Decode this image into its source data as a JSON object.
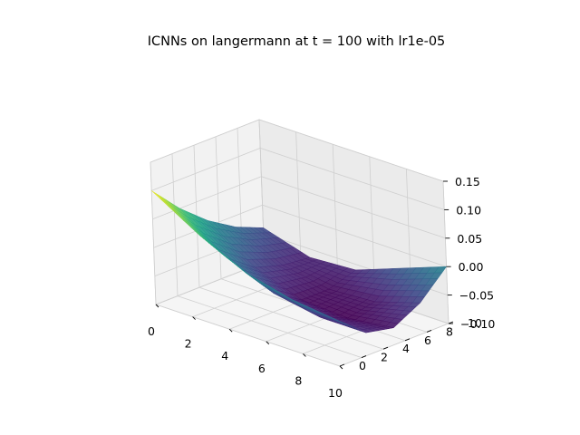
{
  "chart_data": {
    "type": "surface3d",
    "title": "ICNNs on langermann at t = 100 with lr1e-05",
    "xlabel": "",
    "ylabel": "",
    "zlabel": "",
    "xlim": [
      0,
      10
    ],
    "ylim": [
      0,
      10
    ],
    "zlim": [
      -0.1,
      0.15
    ],
    "x_ticks": [
      0,
      2,
      4,
      6,
      8,
      10
    ],
    "y_ticks": [
      0,
      2,
      4,
      6,
      8,
      10
    ],
    "z_ticks": [
      -0.1,
      -0.05,
      0.0,
      0.05,
      0.1,
      0.15
    ],
    "x_tick_labels": [
      "0",
      "2",
      "4",
      "6",
      "8",
      "10"
    ],
    "y_tick_labels": [
      "0",
      "2",
      "4",
      "6",
      "8",
      "10"
    ],
    "z_tick_labels": [
      "−0.10",
      "−0.05",
      "0.00",
      "0.05",
      "0.10",
      "0.15"
    ],
    "colormap": "viridis",
    "grid": true,
    "surface": {
      "x": [
        0,
        2.5,
        5,
        7.5,
        10
      ],
      "y": [
        0,
        2.5,
        5,
        7.5,
        10
      ],
      "z": [
        [
          0.1,
          0.05,
          0.01,
          -0.02,
          -0.04
        ],
        [
          0.05,
          -0.01,
          -0.045,
          -0.06,
          -0.065
        ],
        [
          0.01,
          -0.045,
          -0.075,
          -0.075,
          -0.06
        ],
        [
          -0.01,
          -0.06,
          -0.08,
          -0.07,
          -0.03
        ],
        [
          -0.02,
          -0.06,
          -0.07,
          -0.045,
          0.0
        ]
      ]
    },
    "colors": {
      "pane_left": "#f2f2f2",
      "pane_back": "#ebebeb",
      "pane_floor": "#f5f5f5",
      "grid": "#cfcfcf"
    }
  }
}
